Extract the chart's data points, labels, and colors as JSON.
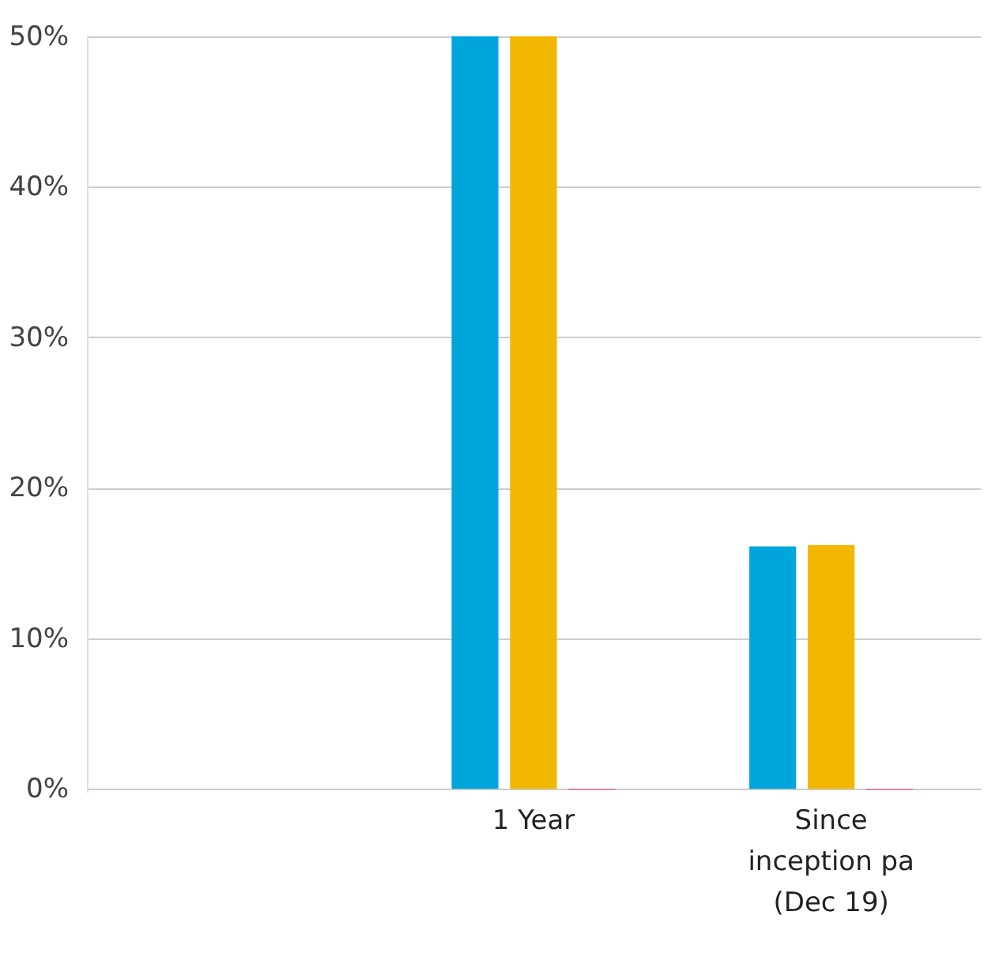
{
  "chart_data": {
    "type": "bar",
    "categories": [
      null,
      "1 Year",
      "Since inception pa (Dec 19)"
    ],
    "series": [
      {
        "color": "#00a5dc",
        "values": [
          null,
          50.0,
          16.1
        ]
      },
      {
        "color": "#f2b700",
        "values": [
          null,
          50.0,
          16.2
        ]
      },
      {
        "color": "#e07aa0",
        "values": [
          null,
          -0.1,
          -0.1
        ]
      }
    ],
    "ylim": [
      -0.2,
      50
    ],
    "yticks": [
      {
        "value": 0,
        "label": "0%"
      },
      {
        "value": 10,
        "label": "10%"
      },
      {
        "value": 20,
        "label": "20%"
      },
      {
        "value": 30,
        "label": "30%"
      },
      {
        "value": 40,
        "label": "40%"
      },
      {
        "value": 50,
        "label": "50%"
      }
    ],
    "grid": "y",
    "legend": false
  }
}
